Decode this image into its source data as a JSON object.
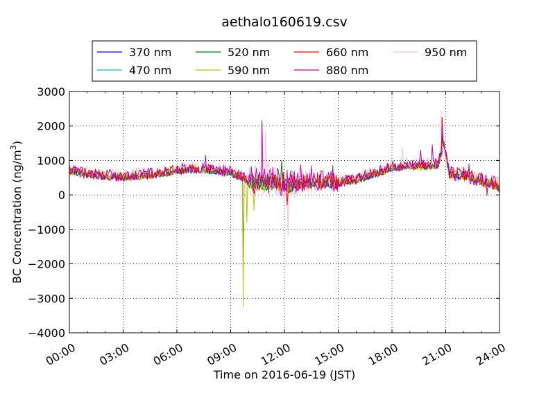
{
  "chart_data": {
    "type": "line",
    "title": "aethalo160619.csv",
    "xlabel": "Time on 2016-06-19 (JST)",
    "ylabel": "BC Concentration (ng/m",
    "ylabel_sup": "3",
    "ylabel_end": ")",
    "xlim": [
      "00:00",
      "24:00"
    ],
    "ylim": [
      -4000,
      3000
    ],
    "grid": true,
    "legend_position": "top",
    "x_ticks": [
      "00:00",
      "03:00",
      "06:00",
      "09:00",
      "12:00",
      "15:00",
      "18:00",
      "21:00",
      "24:00"
    ],
    "y_ticks": [
      3000,
      2000,
      1000,
      0,
      -1000,
      -2000,
      -3000,
      -4000
    ],
    "y_tick_labels": [
      "3000",
      "2000",
      "1000",
      "0",
      "−1000",
      "−2000",
      "−3000",
      "−4000"
    ],
    "series": [
      {
        "name": "370 nm",
        "color": "#0000ff"
      },
      {
        "name": "470 nm",
        "color": "#00bfbf"
      },
      {
        "name": "520 nm",
        "color": "#008000"
      },
      {
        "name": "590 nm",
        "color": "#bfbf00"
      },
      {
        "name": "660 nm",
        "color": "#ff0000"
      },
      {
        "name": "880 nm",
        "color": "#bf00bf"
      },
      {
        "name": "950 nm",
        "color": "#ffc0cb"
      }
    ],
    "profile": {
      "hours": [
        0,
        1,
        2,
        3,
        4,
        5,
        6,
        7,
        8,
        9,
        9.6,
        10,
        10.5,
        11,
        11.5,
        12,
        12.5,
        13,
        14,
        15,
        16,
        17,
        18,
        19,
        20,
        20.6,
        20.9,
        21.2,
        22,
        23,
        24
      ],
      "base": [
        700,
        600,
        550,
        520,
        560,
        620,
        720,
        750,
        720,
        650,
        500,
        400,
        380,
        370,
        450,
        300,
        280,
        350,
        380,
        350,
        450,
        600,
        800,
        850,
        850,
        900,
        1500,
        600,
        580,
        400,
        250
      ]
    },
    "events": [
      {
        "series": "590 nm",
        "hour": 9.72,
        "value": -3250
      },
      {
        "series": "520 nm",
        "hour": 9.72,
        "value": -2000
      },
      {
        "series": "590 nm",
        "hour": 9.9,
        "value": -800
      },
      {
        "series": "590 nm",
        "hour": 10.3,
        "value": -450
      },
      {
        "series": "880 nm",
        "hour": 10.75,
        "value": 2150
      },
      {
        "series": "950 nm",
        "hour": 10.95,
        "value": 1850
      },
      {
        "series": "950 nm",
        "hour": 11.1,
        "value": 1000
      },
      {
        "series": "520 nm",
        "hour": 11.85,
        "value": 1000
      },
      {
        "series": "950 nm",
        "hour": 12.2,
        "value": -1200
      },
      {
        "series": "660 nm",
        "hour": 12.15,
        "value": -300
      },
      {
        "series": "880 nm",
        "hour": 12.9,
        "value": 880
      },
      {
        "series": "880 nm",
        "hour": 13.5,
        "value": 850
      },
      {
        "series": "880 nm",
        "hour": 14.7,
        "value": 850
      },
      {
        "series": "950 nm",
        "hour": 18.6,
        "value": 1350
      },
      {
        "series": "880 nm",
        "hour": 19.6,
        "value": 1300
      },
      {
        "series": "880 nm",
        "hour": 20.25,
        "value": 1450
      },
      {
        "series": "950 nm",
        "hour": 20.75,
        "value": 2450
      },
      {
        "series": "660 nm",
        "hour": 20.8,
        "value": 2250
      },
      {
        "series": "880 nm",
        "hour": 20.8,
        "value": 2050
      },
      {
        "series": "520 nm",
        "hour": 20.8,
        "value": 1700
      },
      {
        "series": "370 nm",
        "hour": 20.85,
        "value": 1500
      },
      {
        "series": "880 nm",
        "hour": 7.6,
        "value": 1150
      },
      {
        "series": "880 nm",
        "hour": 22.3,
        "value": 900
      },
      {
        "series": "880 nm",
        "hour": 23.3,
        "value": -20
      }
    ]
  }
}
